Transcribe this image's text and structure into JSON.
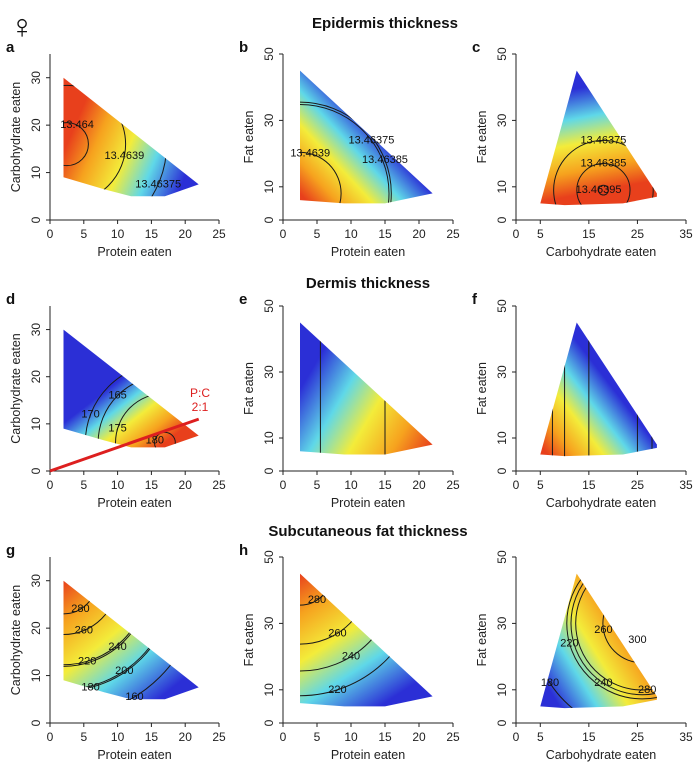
{
  "figure": {
    "sex_symbol": "♀",
    "sections": [
      "Epidermis thickness",
      "Dermis thickness",
      "Subcutaneous fat thickness"
    ],
    "pc_annotation": [
      "P:C",
      "2:1"
    ],
    "colors": {
      "red": "#e8401c",
      "orange": "#f6a21e",
      "yellow": "#f3ec3a",
      "cyan": "#5fd8e8",
      "blue": "#2b2fd6",
      "annotation": "#dd1f1f"
    }
  },
  "chart_data": [
    {
      "panel": "a",
      "section": "Epidermis thickness",
      "type": "heatmap",
      "xlabel": "Protein eaten",
      "ylabel": "Carbohydrate eaten",
      "xlim": [
        0,
        25
      ],
      "ylim": [
        0,
        35
      ],
      "xticks": [
        0,
        5,
        10,
        15,
        20,
        25
      ],
      "yticks": [
        0,
        10,
        20,
        30
      ],
      "region": [
        [
          2,
          30
        ],
        [
          2,
          9
        ],
        [
          8,
          6.5
        ],
        [
          12,
          5
        ],
        [
          17,
          5
        ],
        [
          22,
          7.5
        ]
      ],
      "hot_spot": [
        2.5,
        16
      ],
      "cold_spot": [
        19,
        6
      ],
      "contour_labels": [
        {
          "text": "13.464",
          "at": [
            4,
            20
          ]
        },
        {
          "text": "13.4639",
          "at": [
            11,
            13.5
          ]
        },
        {
          "text": "13.46375",
          "at": [
            16,
            7.5
          ]
        }
      ]
    },
    {
      "panel": "b",
      "section": "Epidermis thickness",
      "type": "heatmap",
      "xlabel": "Protein eaten",
      "ylabel": "Fat eaten",
      "xlim": [
        0,
        25
      ],
      "ylim": [
        0,
        50
      ],
      "xticks": [
        0,
        5,
        10,
        15,
        20,
        25
      ],
      "yticks": [
        0,
        10,
        30,
        50
      ],
      "region": [
        [
          2.5,
          45
        ],
        [
          2.5,
          6
        ],
        [
          9,
          5
        ],
        [
          15,
          5
        ],
        [
          22,
          8
        ]
      ],
      "hot_spot": [
        2.5,
        8
      ],
      "cold_spot": [
        13,
        28
      ],
      "contour_labels": [
        {
          "text": "13.4639",
          "at": [
            4,
            20
          ]
        },
        {
          "text": "13.46375",
          "at": [
            13,
            24
          ]
        },
        {
          "text": "13.46385",
          "at": [
            15,
            18
          ]
        }
      ]
    },
    {
      "panel": "c",
      "section": "Epidermis thickness",
      "type": "heatmap",
      "xlabel": "Carbohydrate eaten",
      "ylabel": "Fat eaten",
      "xlim": [
        0,
        35
      ],
      "ylim": [
        0,
        50
      ],
      "xticks": [
        0,
        5,
        15,
        25,
        35
      ],
      "yticks": [
        0,
        10,
        30,
        50
      ],
      "region": [
        [
          12.5,
          45
        ],
        [
          5,
          5
        ],
        [
          10,
          4.5
        ],
        [
          22,
          5
        ],
        [
          29,
          7
        ],
        [
          29,
          8
        ]
      ],
      "hot_spot": [
        18,
        9
      ],
      "cold_spot": [
        14,
        40
      ],
      "contour_labels": [
        {
          "text": "13.46375",
          "at": [
            18,
            24
          ]
        },
        {
          "text": "13.46385",
          "at": [
            18,
            17
          ]
        },
        {
          "text": "13.46395",
          "at": [
            17,
            9
          ]
        }
      ]
    },
    {
      "panel": "d",
      "section": "Dermis thickness",
      "type": "heatmap",
      "xlabel": "Protein eaten",
      "ylabel": "Carbohydrate eaten",
      "xlim": [
        0,
        25
      ],
      "ylim": [
        0,
        35
      ],
      "xticks": [
        0,
        5,
        10,
        15,
        20,
        25
      ],
      "yticks": [
        0,
        10,
        20,
        30
      ],
      "region": [
        [
          2,
          30
        ],
        [
          2,
          9
        ],
        [
          8,
          6.5
        ],
        [
          12,
          5
        ],
        [
          17,
          5
        ],
        [
          22,
          7.5
        ]
      ],
      "hot_spot": [
        17,
        6
      ],
      "cold_spot": [
        10,
        19
      ],
      "contour_labels": [
        {
          "text": "165",
          "at": [
            10,
            16
          ]
        },
        {
          "text": "170",
          "at": [
            6,
            12
          ]
        },
        {
          "text": "175",
          "at": [
            10,
            9
          ]
        },
        {
          "text": "180",
          "at": [
            15.5,
            6.5
          ]
        }
      ],
      "pc_line": {
        "from": [
          0,
          0
        ],
        "to": [
          22,
          11
        ]
      }
    },
    {
      "panel": "e",
      "section": "Dermis thickness",
      "type": "heatmap",
      "xlabel": "Protein eaten",
      "ylabel": "Fat eaten",
      "xlim": [
        0,
        25
      ],
      "ylim": [
        0,
        50
      ],
      "xticks": [
        0,
        5,
        10,
        15,
        20,
        25
      ],
      "yticks": [
        0,
        10,
        30,
        50
      ],
      "region": [
        [
          2.5,
          45
        ],
        [
          2.5,
          6
        ],
        [
          9,
          5
        ],
        [
          15,
          5
        ],
        [
          22,
          8
        ]
      ],
      "hot_spot": [
        22,
        8
      ],
      "cold_spot": [
        4,
        30
      ],
      "contour_labels": []
    },
    {
      "panel": "f",
      "section": "Dermis thickness",
      "type": "heatmap",
      "xlabel": "Carbohydrate eaten",
      "ylabel": "Fat eaten",
      "xlim": [
        0,
        35
      ],
      "ylim": [
        0,
        50
      ],
      "xticks": [
        0,
        5,
        15,
        25,
        35
      ],
      "yticks": [
        0,
        10,
        30,
        50
      ],
      "region": [
        [
          12.5,
          45
        ],
        [
          5,
          5
        ],
        [
          10,
          4.5
        ],
        [
          22,
          5
        ],
        [
          29,
          7
        ],
        [
          29,
          8
        ]
      ],
      "hot_spot": [
        5,
        8
      ],
      "cold_spot": [
        20,
        25
      ],
      "contour_labels": []
    },
    {
      "panel": "g",
      "section": "Subcutaneous fat thickness",
      "type": "heatmap",
      "xlabel": "Protein eaten",
      "ylabel": "Carbohydrate eaten",
      "xlim": [
        0,
        25
      ],
      "ylim": [
        0,
        35
      ],
      "xticks": [
        0,
        5,
        10,
        15,
        20,
        25
      ],
      "yticks": [
        0,
        10,
        20,
        30
      ],
      "region": [
        [
          2,
          30
        ],
        [
          2,
          9
        ],
        [
          8,
          6.5
        ],
        [
          12,
          5
        ],
        [
          17,
          5
        ],
        [
          22,
          7.5
        ]
      ],
      "hot_spot": [
        2,
        30
      ],
      "cold_spot": [
        16,
        5
      ],
      "contour_labels": [
        {
          "text": "280",
          "at": [
            4.5,
            24
          ]
        },
        {
          "text": "260",
          "at": [
            5,
            19.5
          ]
        },
        {
          "text": "240",
          "at": [
            10,
            16
          ]
        },
        {
          "text": "220",
          "at": [
            5.5,
            13
          ]
        },
        {
          "text": "200",
          "at": [
            11,
            11
          ]
        },
        {
          "text": "180",
          "at": [
            6,
            7.5
          ]
        },
        {
          "text": "160",
          "at": [
            12.5,
            5.5
          ]
        }
      ]
    },
    {
      "panel": "h",
      "section": "Subcutaneous fat thickness",
      "type": "heatmap",
      "xlabel": "Protein eaten",
      "ylabel": "Fat eaten",
      "xlim": [
        0,
        25
      ],
      "ylim": [
        0,
        50
      ],
      "xticks": [
        0,
        5,
        10,
        15,
        20,
        25
      ],
      "yticks": [
        0,
        10,
        30,
        50
      ],
      "region": [
        [
          2.5,
          45
        ],
        [
          2.5,
          6
        ],
        [
          9,
          5
        ],
        [
          15,
          5
        ],
        [
          22,
          8
        ]
      ],
      "hot_spot": [
        2.5,
        45
      ],
      "cold_spot": [
        15,
        6
      ],
      "contour_labels": [
        {
          "text": "280",
          "at": [
            5,
            37
          ]
        },
        {
          "text": "260",
          "at": [
            8,
            27
          ]
        },
        {
          "text": "240",
          "at": [
            10,
            20
          ]
        },
        {
          "text": "220",
          "at": [
            8,
            10
          ]
        }
      ]
    },
    {
      "panel": "",
      "section": "Subcutaneous fat thickness",
      "type": "heatmap",
      "xlabel": "Carbohydrate eaten",
      "ylabel": "Fat eaten",
      "xlim": [
        0,
        35
      ],
      "ylim": [
        0,
        50
      ],
      "xticks": [
        0,
        5,
        15,
        25,
        35
      ],
      "yticks": [
        0,
        10,
        30,
        50
      ],
      "region": [
        [
          12.5,
          45
        ],
        [
          5,
          5
        ],
        [
          10,
          4.5
        ],
        [
          22,
          5
        ],
        [
          29,
          7
        ],
        [
          29,
          8
        ]
      ],
      "hot_spot": [
        26,
        30
      ],
      "cold_spot": [
        6,
        12
      ],
      "contour_labels": [
        {
          "text": "220",
          "at": [
            11,
            24
          ]
        },
        {
          "text": "260",
          "at": [
            18,
            28
          ]
        },
        {
          "text": "300",
          "at": [
            25,
            25
          ]
        },
        {
          "text": "180",
          "at": [
            7,
            12
          ]
        },
        {
          "text": "240",
          "at": [
            18,
            12
          ]
        },
        {
          "text": "280",
          "at": [
            27,
            10
          ]
        }
      ]
    }
  ]
}
